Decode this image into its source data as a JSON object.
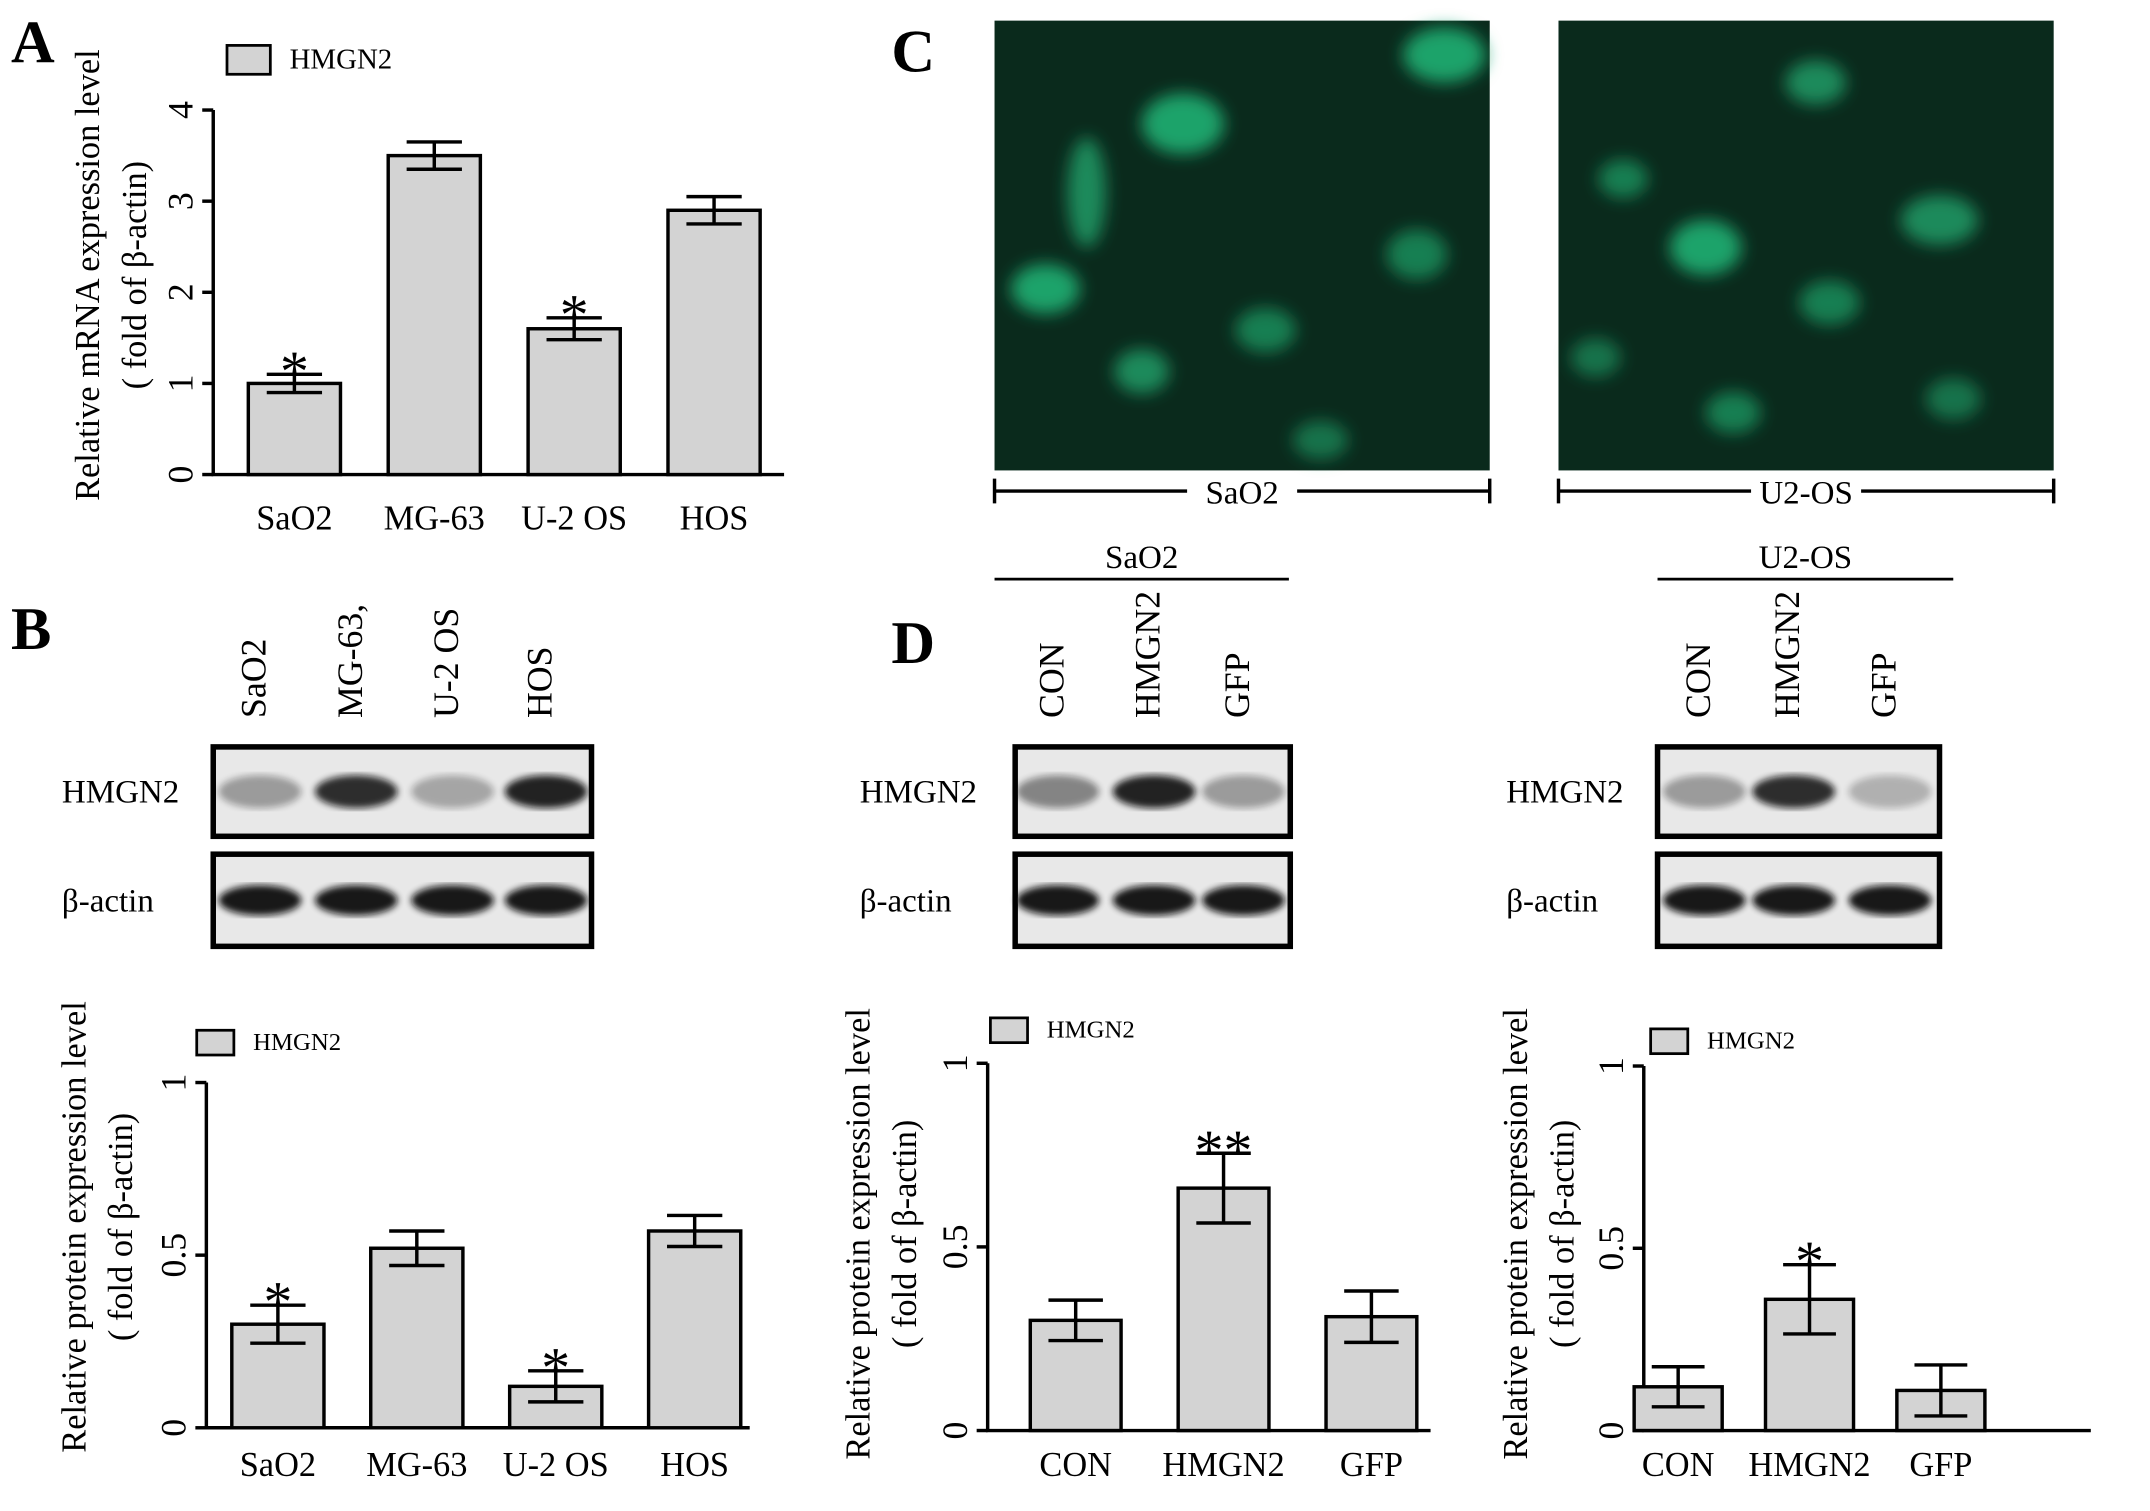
{
  "panel_labels": [
    "A",
    "B",
    "C",
    "D"
  ],
  "images": [
    {
      "label": "SaO2"
    },
    {
      "label": "U2-OS"
    }
  ],
  "blots": [
    {
      "group": null,
      "lanes": [
        "SaO2",
        "MG-63,",
        "U-2 OS",
        "HOS"
      ],
      "rows": [
        "HMGN2",
        "β-actin"
      ]
    },
    {
      "group": "SaO2",
      "lanes": [
        "CON",
        "HMGN2",
        "GFP"
      ],
      "rows": [
        "HMGN2",
        "β-actin"
      ]
    },
    {
      "group": "U2-OS",
      "lanes": [
        "CON",
        "HMGN2",
        "GFP"
      ],
      "rows": [
        "HMGN2",
        "β-actin"
      ]
    }
  ],
  "chart_data": [
    {
      "type": "bar",
      "y_label": [
        "Relative mRNA expression level",
        "( fold of β-actin)"
      ],
      "categories": [
        "SaO2",
        "MG-63",
        "U-2 OS",
        "HOS"
      ],
      "series": [
        {
          "name": "HMGN2",
          "color": "#d3d3d3",
          "values": [
            1.0,
            3.5,
            1.6,
            2.9
          ],
          "errors": [
            0.1,
            0.15,
            0.12,
            0.15
          ]
        }
      ],
      "ylim": [
        0,
        4
      ],
      "yticks": [
        0,
        1,
        2,
        3,
        4
      ],
      "annotations": [
        {
          "text": "*",
          "x": "SaO2"
        },
        {
          "text": "*",
          "x": "U-2 OS"
        }
      ]
    },
    {
      "type": "bar",
      "y_label": [
        "Relative  protein expression level",
        "( fold of β-actin)"
      ],
      "categories": [
        "SaO2",
        "MG-63",
        "U-2 OS",
        "HOS"
      ],
      "series": [
        {
          "name": "HMGN2",
          "color": "#d3d3d3",
          "values": [
            0.3,
            0.52,
            0.12,
            0.57
          ],
          "errors": [
            0.055,
            0.05,
            0.045,
            0.045
          ]
        }
      ],
      "ylim": [
        0,
        1
      ],
      "yticks": [
        0,
        0.5,
        1
      ],
      "annotations": [
        {
          "text": "*",
          "x": "SaO2"
        },
        {
          "text": "*",
          "x": "U-2 OS"
        }
      ]
    },
    {
      "type": "bar",
      "y_label": [
        "Relative  protein expression level",
        "( fold of β-actin)"
      ],
      "categories": [
        "CON",
        "HMGN2",
        "GFP"
      ],
      "series": [
        {
          "name": "HMGN2",
          "color": "#d3d3d3",
          "values": [
            0.3,
            0.66,
            0.31
          ],
          "errors": [
            0.055,
            0.095,
            0.07
          ]
        }
      ],
      "ylim": [
        0,
        1
      ],
      "yticks": [
        0,
        0.5,
        1
      ],
      "annotations": [
        {
          "text": "**",
          "x": "HMGN2"
        }
      ]
    },
    {
      "type": "bar",
      "y_label": [
        "Relative  protein expression level",
        "( fold of β-actin)"
      ],
      "categories": [
        "CON",
        "HMGN2",
        "GFP"
      ],
      "series": [
        {
          "name": "HMGN2",
          "color": "#d3d3d3",
          "values": [
            0.12,
            0.36,
            0.11
          ],
          "errors": [
            0.055,
            0.095,
            0.07
          ]
        }
      ],
      "ylim": [
        0,
        1
      ],
      "yticks": [
        0,
        0.5,
        1
      ],
      "annotations": [
        {
          "text": "*",
          "x": "HMGN2"
        }
      ]
    }
  ]
}
